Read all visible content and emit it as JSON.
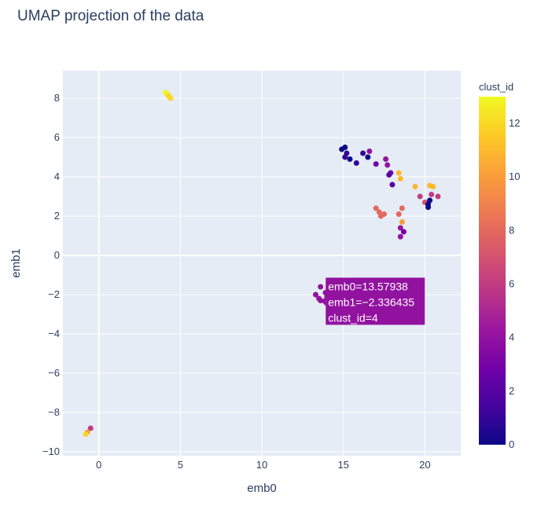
{
  "chart_data": {
    "type": "scatter",
    "title": "UMAP projection of the data",
    "xlabel": "emb0",
    "ylabel": "emb1",
    "xlim": [
      -2.2,
      22.2
    ],
    "ylim": [
      -10.2,
      9.4
    ],
    "x_ticks": [
      0,
      5,
      10,
      15,
      20
    ],
    "y_ticks": [
      8,
      6,
      4,
      2,
      0,
      -2,
      -4,
      -6,
      -8,
      -10
    ],
    "grid": true,
    "colorbar": {
      "title": "clust_id",
      "range": [
        0,
        13
      ],
      "ticks": [
        0,
        2,
        4,
        6,
        8,
        10,
        12
      ],
      "colorscale": [
        "#0d0887",
        "#46039f",
        "#7201a8",
        "#9c179e",
        "#bd3786",
        "#d8576b",
        "#ed7953",
        "#fb9f3a",
        "#fdca26",
        "#f0f921"
      ]
    },
    "points": [
      {
        "x": 4.1,
        "y": 8.3,
        "c": 13
      },
      {
        "x": 4.2,
        "y": 8.2,
        "c": 12.5
      },
      {
        "x": 4.3,
        "y": 8.1,
        "c": 12
      },
      {
        "x": 4.4,
        "y": 8.0,
        "c": 12
      },
      {
        "x": 14.9,
        "y": 5.4,
        "c": 0
      },
      {
        "x": 15.1,
        "y": 5.5,
        "c": 0
      },
      {
        "x": 15.2,
        "y": 5.2,
        "c": 1
      },
      {
        "x": 15.1,
        "y": 5.0,
        "c": 1
      },
      {
        "x": 15.4,
        "y": 4.9,
        "c": 0
      },
      {
        "x": 15.8,
        "y": 4.7,
        "c": 1
      },
      {
        "x": 16.2,
        "y": 5.2,
        "c": 1
      },
      {
        "x": 16.5,
        "y": 5.0,
        "c": 0
      },
      {
        "x": 16.6,
        "y": 5.3,
        "c": 4
      },
      {
        "x": 17.0,
        "y": 4.65,
        "c": 3
      },
      {
        "x": 17.6,
        "y": 4.9,
        "c": 4
      },
      {
        "x": 17.7,
        "y": 4.6,
        "c": 4
      },
      {
        "x": 17.9,
        "y": 4.2,
        "c": 3
      },
      {
        "x": 17.8,
        "y": 4.1,
        "c": 2
      },
      {
        "x": 18.0,
        "y": 3.6,
        "c": 2
      },
      {
        "x": 18.4,
        "y": 4.2,
        "c": 11
      },
      {
        "x": 18.5,
        "y": 3.9,
        "c": 11
      },
      {
        "x": 19.4,
        "y": 3.5,
        "c": 11
      },
      {
        "x": 20.3,
        "y": 3.55,
        "c": 11
      },
      {
        "x": 20.5,
        "y": 3.5,
        "c": 11
      },
      {
        "x": 19.7,
        "y": 3.0,
        "c": 6
      },
      {
        "x": 20.0,
        "y": 2.7,
        "c": 7
      },
      {
        "x": 20.4,
        "y": 3.1,
        "c": 6
      },
      {
        "x": 20.8,
        "y": 3.0,
        "c": 6
      },
      {
        "x": 20.2,
        "y": 2.6,
        "c": 0
      },
      {
        "x": 20.3,
        "y": 2.8,
        "c": 0
      },
      {
        "x": 20.2,
        "y": 2.45,
        "c": 0
      },
      {
        "x": 17.0,
        "y": 2.4,
        "c": 8
      },
      {
        "x": 17.2,
        "y": 2.2,
        "c": 8
      },
      {
        "x": 17.3,
        "y": 2.0,
        "c": 8
      },
      {
        "x": 17.5,
        "y": 2.1,
        "c": 8
      },
      {
        "x": 18.4,
        "y": 2.1,
        "c": 8
      },
      {
        "x": 18.6,
        "y": 2.4,
        "c": 8
      },
      {
        "x": 18.6,
        "y": 1.7,
        "c": 10
      },
      {
        "x": 18.5,
        "y": 1.4,
        "c": 4
      },
      {
        "x": 18.7,
        "y": 1.2,
        "c": 3
      },
      {
        "x": 18.5,
        "y": 0.95,
        "c": 4
      },
      {
        "x": 13.6,
        "y": -1.6,
        "c": 4
      },
      {
        "x": 13.9,
        "y": -1.9,
        "c": 4
      },
      {
        "x": 13.3,
        "y": -2.0,
        "c": 4
      },
      {
        "x": 13.5,
        "y": -2.2,
        "c": 4
      },
      {
        "x": 13.6,
        "y": -2.3,
        "c": 4
      },
      {
        "x": 14.0,
        "y": -2.1,
        "c": 4
      },
      {
        "x": -0.5,
        "y": -8.8,
        "c": 6
      },
      {
        "x": -0.7,
        "y": -9.0,
        "c": 10
      },
      {
        "x": -0.8,
        "y": -9.1,
        "c": 12
      }
    ],
    "tooltip": {
      "lines": [
        "emb0=13.57938",
        "emb1=−2.336435",
        "clust_id=4"
      ],
      "x": 13.57938,
      "y": -2.336435,
      "c": 4
    }
  }
}
